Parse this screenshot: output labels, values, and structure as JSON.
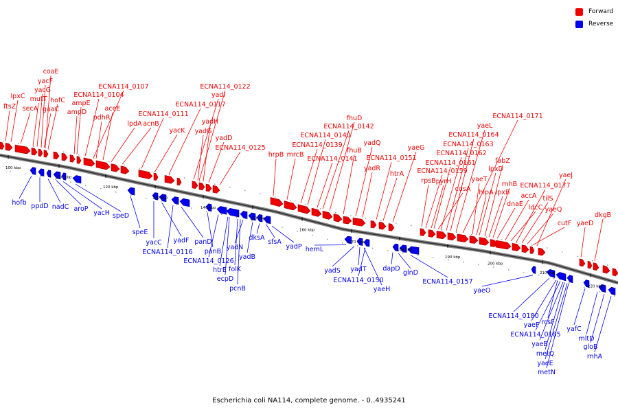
{
  "legend": {
    "forward": {
      "label": "Forward",
      "color": "#ee0000"
    },
    "reverse": {
      "label": "Reverse",
      "color": "#0000ee"
    }
  },
  "caption": "Escherichia coli NA114, complete genome. - 0..4935241",
  "ticks": [
    "100 kbp",
    "110 kbp",
    "120 kbp",
    "130 kbp",
    "140 kbp",
    "150 kbp",
    "160 kbp",
    "170 kbp",
    "180 kbp",
    "190 kbp",
    "200 kbp",
    "210 kbp",
    "220 kbp"
  ],
  "forward_genes": [
    "ftsZ",
    "lpxC",
    "secA",
    "mutT",
    "yacG",
    "yacF",
    "coaE",
    "hofC",
    "guaC",
    "ampD",
    "ampE",
    "ECNA114_0104",
    "ECNA114_0107",
    "pdhR",
    "aceE",
    "lpdA",
    "acnB",
    "ECNA114_0111",
    "yacK",
    "ECNA114_0117",
    "yadI",
    "ECNA114_0122",
    "yadH",
    "yadG",
    "yadD",
    "ECNA114_0125",
    "hrpB",
    "mrcB",
    "ECNA114_0139",
    "ECNA114_0140",
    "ECNA114_0142",
    "fhuD",
    "fhuB",
    "ECNA114_0141",
    "yadQ",
    "yadR",
    "ECNA114_0151",
    "htrA",
    "yaeG",
    "rpsB",
    "ECNA114_0159",
    "pyrH",
    "ECNA114_0161",
    "cdsA",
    "ECNA114_0162",
    "ECNA114_0163",
    "ECNA114_0164",
    "yaeL",
    "ECNA114_0171",
    "yaeT",
    "hlpA",
    "lpxD",
    "fabZ",
    "lpxB",
    "rnhB",
    "dnaE",
    "accA",
    "ldcC",
    "ECNA114_0177",
    "tilS",
    "yaeJ",
    "yaeQ",
    "cutF",
    "yaeD",
    "dkgB"
  ],
  "reverse_genes": [
    "hofb",
    "ppdD",
    "nadC",
    "aroP",
    "yacH",
    "speD",
    "speE",
    "yacC",
    "yadF",
    "ECNA114_0116",
    "panD",
    "panB",
    "ECNA114_0126",
    "htrE",
    "folK",
    "ecpD",
    "yadN",
    "yadB",
    "dksA",
    "sfsA",
    "yadP",
    "pcnB",
    "hemL",
    "yadS",
    "yadT",
    "ECNA114_0150",
    "yaeH",
    "dapD",
    "glnD",
    "ECNA114_0157",
    "yaeO",
    "ECNA114_0180",
    "yaeF",
    "rcsF",
    "ECNA114_0185",
    "yaeB",
    "metQ",
    "yaeE",
    "metN",
    "yafC",
    "mltD",
    "gloB",
    "rnhA"
  ]
}
